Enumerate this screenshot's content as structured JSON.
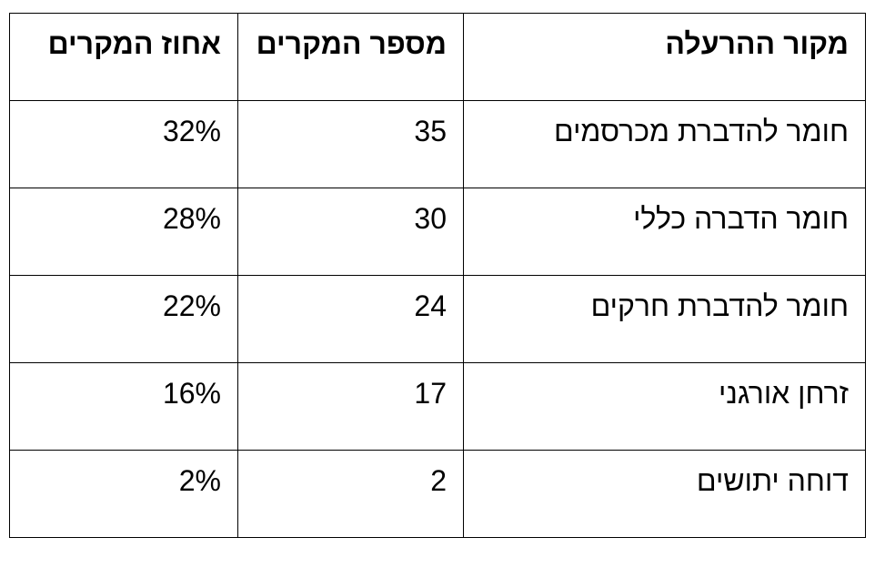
{
  "table": {
    "header": [
      "מקור ההרעלה",
      "מספר המקרים",
      "אחוז המקרים"
    ],
    "rows": [
      [
        "חומר להדברת מכרסמים",
        "35",
        "32%"
      ],
      [
        "חומר הדברה כללי",
        "30",
        "28%"
      ],
      [
        "חומר להדברת חרקים",
        "24",
        "22%"
      ],
      [
        "זרחן אורגני",
        "17",
        "16%"
      ],
      [
        "דוחה יתושים",
        "2",
        "2%"
      ]
    ]
  }
}
